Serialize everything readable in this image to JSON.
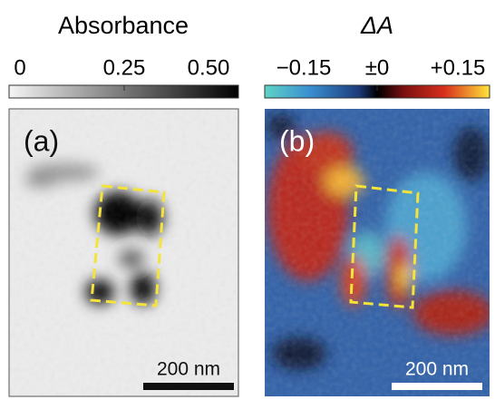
{
  "panels": [
    {
      "colorbar": {
        "title": "Absorbance",
        "ticks": [
          "0",
          "0.25",
          "0.50"
        ]
      },
      "label": "(a)",
      "scale_bar": "200 nm"
    },
    {
      "colorbar": {
        "title": "ΔA",
        "ticks": [
          "−0.15",
          "±0",
          "+0.15"
        ]
      },
      "label": "(b)",
      "scale_bar": "200 nm"
    }
  ]
}
